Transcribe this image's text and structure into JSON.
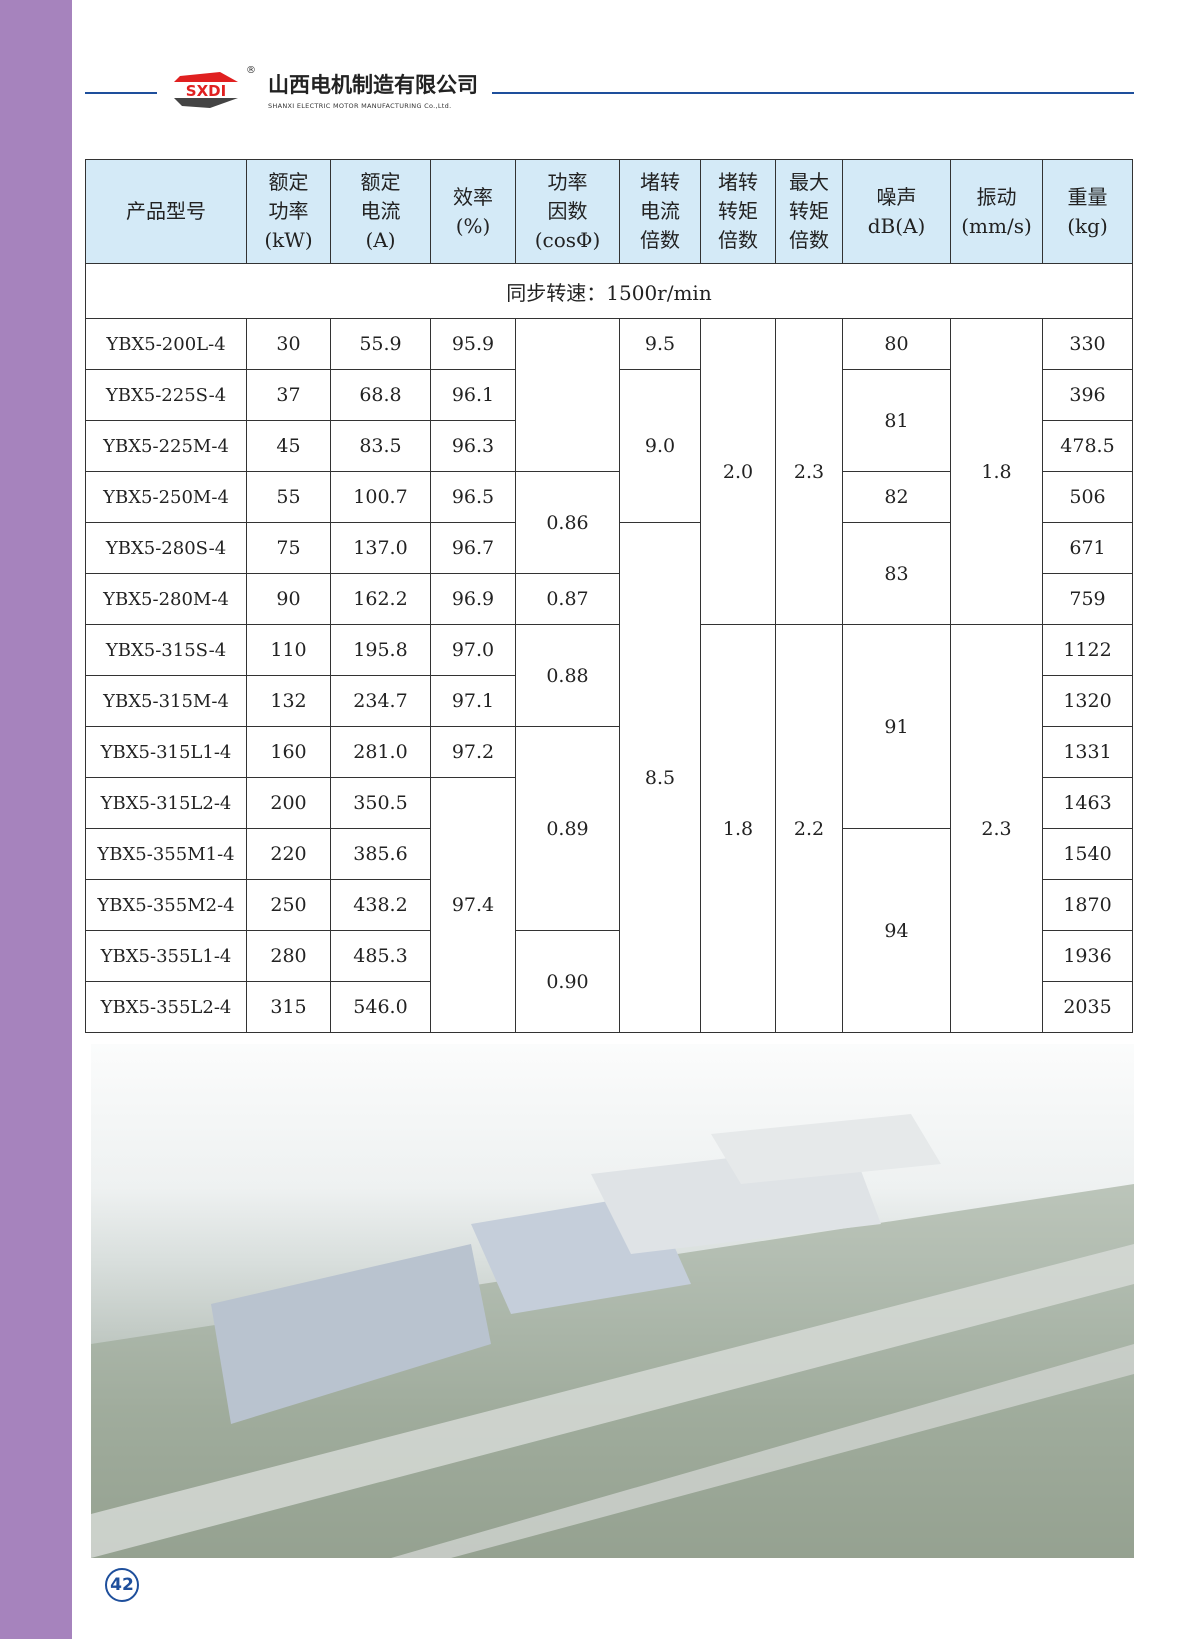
{
  "header": {
    "logo_text": "SXDI",
    "registered_mark": "®",
    "company_cn": "山西电机制造有限公司",
    "company_en": "SHANXI ELECTRIC MOTOR MANUFACTURING Co.,Ltd."
  },
  "table": {
    "headers": [
      "产品型号",
      "额定\n功率\n(kW)",
      "额定\n电流\n(A)",
      "效率\n(%)",
      "功率\n因数\n(cosΦ)",
      "堵转\n电流\n倍数",
      "堵转\n转矩\n倍数",
      "最大\n转矩\n倍数",
      "噪声\ndB(A)",
      "振动\n(mm/s)",
      "重量\n(kg)"
    ],
    "sync_speed": "同步转速：1500r/min",
    "models": [
      "YBX5-200L-4",
      "YBX5-225S-4",
      "YBX5-225M-4",
      "YBX5-250M-4",
      "YBX5-280S-4",
      "YBX5-280M-4",
      "YBX5-315S-4",
      "YBX5-315M-4",
      "YBX5-315L1-4",
      "YBX5-315L2-4",
      "YBX5-355M1-4",
      "YBX5-355M2-4",
      "YBX5-355L1-4",
      "YBX5-355L2-4"
    ],
    "power": [
      "30",
      "37",
      "45",
      "55",
      "75",
      "90",
      "110",
      "132",
      "160",
      "200",
      "220",
      "250",
      "280",
      "315"
    ],
    "current": [
      "55.9",
      "68.8",
      "83.5",
      "100.7",
      "137.0",
      "162.2",
      "195.8",
      "234.7",
      "281.0",
      "350.5",
      "385.6",
      "438.2",
      "485.3",
      "546.0"
    ],
    "efficiency": [
      {
        "v": "95.9",
        "span": 1
      },
      {
        "v": "96.1",
        "span": 1
      },
      {
        "v": "96.3",
        "span": 1
      },
      {
        "v": "96.5",
        "span": 1
      },
      {
        "v": "96.7",
        "span": 1
      },
      {
        "v": "96.9",
        "span": 1
      },
      {
        "v": "97.0",
        "span": 1
      },
      {
        "v": "97.1",
        "span": 1
      },
      {
        "v": "97.2",
        "span": 1
      },
      {
        "v": "97.4",
        "span": 5
      }
    ],
    "power_factor": [
      {
        "v": "",
        "span": 3
      },
      {
        "v": "0.86",
        "span": 2
      },
      {
        "v": "0.87",
        "span": 1
      },
      {
        "v": "0.88",
        "span": 2
      },
      {
        "v": "0.89",
        "span": 4
      },
      {
        "v": "0.90",
        "span": 2
      }
    ],
    "stall_current": [
      {
        "v": "9.5",
        "span": 1
      },
      {
        "v": "9.0",
        "span": 3
      },
      {
        "v": "8.5",
        "span": 10
      }
    ],
    "stall_torque": [
      {
        "v": "2.0",
        "span": 6
      },
      {
        "v": "1.8",
        "span": 8
      }
    ],
    "max_torque": [
      {
        "v": "2.3",
        "span": 6
      },
      {
        "v": "2.2",
        "span": 8
      }
    ],
    "noise": [
      {
        "v": "80",
        "span": 1
      },
      {
        "v": "81",
        "span": 2
      },
      {
        "v": "82",
        "span": 1
      },
      {
        "v": "83",
        "span": 2
      },
      {
        "v": "91",
        "span": 4
      },
      {
        "v": "94",
        "span": 4
      }
    ],
    "vibration": [
      {
        "v": "1.8",
        "span": 6
      },
      {
        "v": "2.3",
        "span": 8
      }
    ],
    "weight": [
      "330",
      "396",
      "478.5",
      "506",
      "671",
      "759",
      "1122",
      "1320",
      "1331",
      "1463",
      "1540",
      "1870",
      "1936",
      "2035"
    ]
  },
  "page_number": "42",
  "colors": {
    "sidebar": "#a683bd",
    "header_fill": "#d4eaf7",
    "rule": "#1e4f9c",
    "logo_red": "#e02020"
  }
}
